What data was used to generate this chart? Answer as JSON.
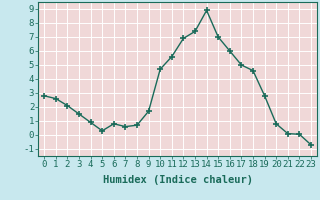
{
  "x": [
    0,
    1,
    2,
    3,
    4,
    5,
    6,
    7,
    8,
    9,
    10,
    11,
    12,
    13,
    14,
    15,
    16,
    17,
    18,
    19,
    20,
    21,
    22,
    23
  ],
  "y": [
    2.8,
    2.6,
    2.1,
    1.5,
    0.9,
    0.3,
    0.8,
    0.6,
    0.7,
    1.7,
    4.7,
    5.6,
    6.9,
    7.4,
    8.9,
    7.0,
    6.0,
    5.0,
    4.6,
    2.8,
    0.8,
    0.1,
    0.05,
    -0.7
  ],
  "line_color": "#1a6b5a",
  "marker": "+",
  "marker_size": 5,
  "xlabel": "Humidex (Indice chaleur)",
  "xlim": [
    -0.5,
    23.5
  ],
  "ylim": [
    -1.5,
    9.5
  ],
  "xticks": [
    0,
    1,
    2,
    3,
    4,
    5,
    6,
    7,
    8,
    9,
    10,
    11,
    12,
    13,
    14,
    15,
    16,
    17,
    18,
    19,
    20,
    21,
    22,
    23
  ],
  "yticks": [
    -1,
    0,
    1,
    2,
    3,
    4,
    5,
    6,
    7,
    8,
    9
  ],
  "outer_bg": "#c8e8ee",
  "plot_bg": "#f0d8d8",
  "grid_color": "#ffffff",
  "line_teal": "#1a6b5a",
  "font_size_ticks": 6.5,
  "font_size_xlabel": 7.5,
  "lw": 1.0
}
